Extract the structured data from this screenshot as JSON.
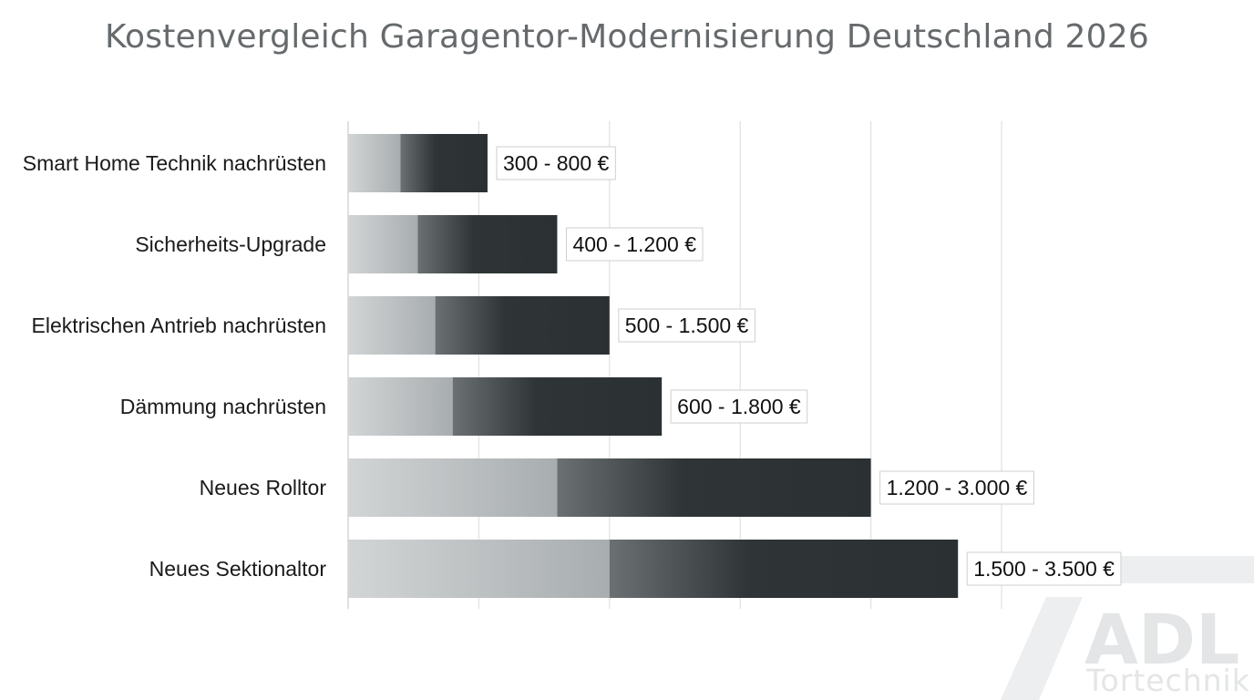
{
  "chart_data": {
    "type": "bar",
    "orientation": "horizontal",
    "title": "Kostenvergleich Garagentor-Modernisierung Deutschland 2026",
    "categories": [
      "Smart Home Technik nachrüsten",
      "Sicherheits-Upgrade",
      "Elektrischen Antrieb nachrüsten",
      "Dämmung nachrüsten",
      "Neues Rolltor",
      "Neues Sektionaltor"
    ],
    "series": [
      {
        "values": [
          300,
          400,
          500,
          600,
          1200,
          1500
        ]
      },
      {
        "values": [
          800,
          1200,
          1500,
          1800,
          3000,
          3500
        ]
      }
    ],
    "data_labels": [
      "300 - 800 €",
      "400 - 1.200 €",
      "500 - 1.500 €",
      "600 - 1.800 €",
      "1.200 - 3.000 €",
      "1.500 - 3.500 €"
    ],
    "xlim": [
      0,
      5000
    ],
    "x_gridlines": [
      0,
      750,
      1500,
      2250,
      3000,
      3750
    ],
    "grid": true,
    "x_tick_labels_shown": false,
    "colors": {
      "range_min": "#c6cacb",
      "range_max": "#2b3133",
      "grid": "#e2e2e2",
      "title": "#666a6c"
    }
  },
  "watermark": {
    "logo_text": "ADL",
    "sub_text": "Tortechnik"
  }
}
